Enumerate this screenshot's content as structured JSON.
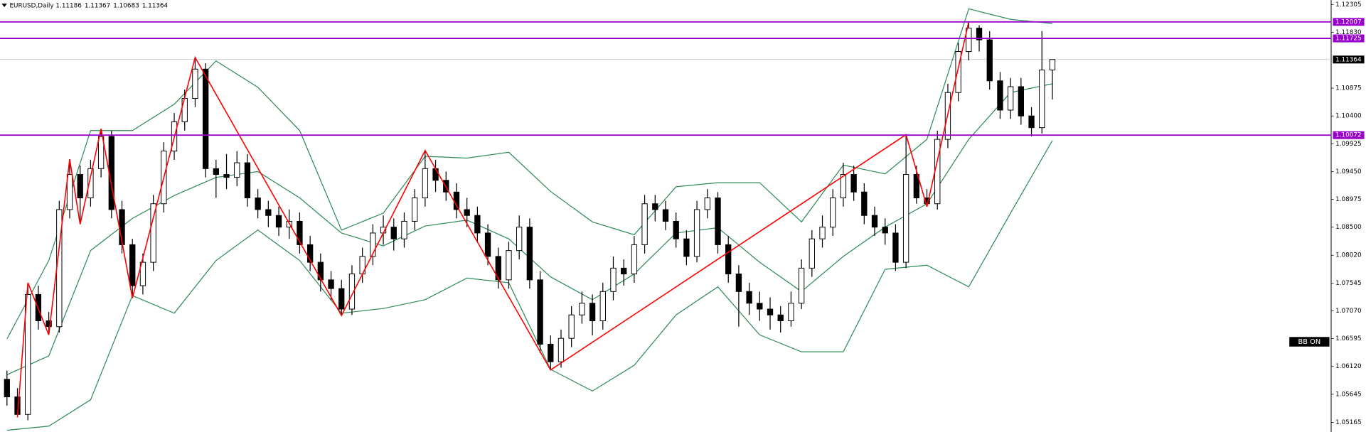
{
  "chart_data": {
    "type": "candlestick",
    "symbol": "EURUSD,Daily",
    "ylim": [
      1.05002,
      1.12379
    ],
    "yticks": [
      1.12305,
      {
        "value": 1.1183,
        "label": "1.11830"
      },
      1.10875,
      {
        "value": 1.104,
        "label": "1.10400"
      },
      1.09925,
      {
        "value": 1.0945,
        "label": "1.09450"
      },
      1.08975,
      {
        "value": 1.085,
        "label": "1.08500"
      },
      {
        "value": 1.0802,
        "label": "1.08020"
      },
      1.07545,
      {
        "value": 1.0707,
        "label": "1.07070"
      },
      1.06595,
      {
        "value": 1.0612,
        "label": "1.06120"
      },
      1.05645,
      1.05165
    ],
    "grid": false,
    "up_color": "#ffffff",
    "down_color": "#000000",
    "candles": [
      [
        1.059,
        1.0605,
        1.0545,
        1.056
      ],
      [
        1.056,
        1.0575,
        1.0525,
        1.053
      ],
      [
        1.053,
        1.0755,
        1.052,
        1.0735
      ],
      [
        1.0735,
        1.075,
        1.0675,
        1.069
      ],
      [
        1.069,
        1.0705,
        1.0666,
        1.068
      ],
      [
        1.068,
        1.0895,
        1.067,
        1.088
      ],
      [
        1.088,
        1.0966,
        1.0865,
        1.094
      ],
      [
        1.094,
        1.0955,
        1.0855,
        1.09
      ],
      [
        1.09,
        1.0965,
        1.0885,
        1.095
      ],
      [
        1.095,
        1.1018,
        1.0935,
        1.1005
      ],
      [
        1.1005,
        1.1015,
        1.0865,
        1.088
      ],
      [
        1.088,
        1.0895,
        1.0805,
        1.082
      ],
      [
        1.082,
        1.083,
        1.0729,
        1.075
      ],
      [
        1.075,
        1.0805,
        1.0735,
        1.079
      ],
      [
        1.079,
        1.0905,
        1.0775,
        1.089
      ],
      [
        1.089,
        1.0995,
        1.0875,
        1.098
      ],
      [
        1.098,
        1.1045,
        1.0965,
        1.103
      ],
      [
        1.103,
        1.1085,
        1.1015,
        1.107
      ],
      [
        1.107,
        1.114,
        1.1055,
        1.112
      ],
      [
        1.112,
        1.113,
        1.0935,
        1.095
      ],
      [
        1.095,
        1.0965,
        1.09,
        1.094
      ],
      [
        1.094,
        1.0975,
        1.0915,
        1.0935
      ],
      [
        1.0935,
        1.098,
        1.092,
        1.096
      ],
      [
        1.096,
        1.0975,
        1.0885,
        1.09
      ],
      [
        1.09,
        1.0915,
        1.0865,
        1.088
      ],
      [
        1.088,
        1.0895,
        1.085,
        1.087
      ],
      [
        1.087,
        1.0885,
        1.0835,
        1.085
      ],
      [
        1.085,
        1.088,
        1.083,
        1.086
      ],
      [
        1.086,
        1.0875,
        1.0805,
        1.082
      ],
      [
        1.082,
        1.0835,
        1.0775,
        1.079
      ],
      [
        1.079,
        1.0805,
        1.074,
        1.076
      ],
      [
        1.076,
        1.0775,
        1.0725,
        1.0745
      ],
      [
        1.0745,
        1.076,
        1.0699,
        1.071
      ],
      [
        1.071,
        1.0785,
        1.07,
        1.077
      ],
      [
        1.077,
        1.0815,
        1.0755,
        1.08
      ],
      [
        1.08,
        1.0855,
        1.0785,
        1.084
      ],
      [
        1.084,
        1.087,
        1.082,
        1.085
      ],
      [
        1.085,
        1.0865,
        1.081,
        1.083
      ],
      [
        1.083,
        1.0875,
        1.0815,
        1.086
      ],
      [
        1.086,
        1.0915,
        1.0845,
        1.09
      ],
      [
        1.09,
        1.0981,
        1.0885,
        1.095
      ],
      [
        1.095,
        1.0965,
        1.091,
        1.093
      ],
      [
        1.093,
        1.0945,
        1.0895,
        1.091
      ],
      [
        1.091,
        1.0925,
        1.0865,
        1.088
      ],
      [
        1.088,
        1.09,
        1.085,
        1.087
      ],
      [
        1.087,
        1.0885,
        1.0825,
        1.084
      ],
      [
        1.084,
        1.0855,
        1.0785,
        1.08
      ],
      [
        1.08,
        1.0815,
        1.0745,
        1.076
      ],
      [
        1.076,
        1.0825,
        1.0745,
        1.081
      ],
      [
        1.081,
        1.087,
        1.0795,
        1.085
      ],
      [
        1.085,
        1.0865,
        1.0745,
        1.076
      ],
      [
        1.076,
        1.0775,
        1.0635,
        1.065
      ],
      [
        1.065,
        1.0665,
        1.0606,
        1.062
      ],
      [
        1.062,
        1.0675,
        1.061,
        1.066
      ],
      [
        1.066,
        1.0715,
        1.0645,
        1.07
      ],
      [
        1.07,
        1.074,
        1.0685,
        1.072
      ],
      [
        1.072,
        1.0735,
        1.0665,
        1.069
      ],
      [
        1.069,
        1.0755,
        1.0675,
        1.074
      ],
      [
        1.074,
        1.08,
        1.0725,
        1.078
      ],
      [
        1.078,
        1.0795,
        1.075,
        1.077
      ],
      [
        1.077,
        1.0835,
        1.0755,
        1.082
      ],
      [
        1.082,
        1.0905,
        1.0805,
        1.089
      ],
      [
        1.089,
        1.0905,
        1.086,
        1.088
      ],
      [
        1.088,
        1.0895,
        1.0845,
        1.086
      ],
      [
        1.086,
        1.0875,
        1.0815,
        1.083
      ],
      [
        1.083,
        1.0845,
        1.0785,
        1.08
      ],
      [
        1.08,
        1.0895,
        1.079,
        1.088
      ],
      [
        1.088,
        1.0915,
        1.0865,
        1.09
      ],
      [
        1.09,
        1.091,
        1.0805,
        1.082
      ],
      [
        1.082,
        1.0835,
        1.0755,
        1.077
      ],
      [
        1.077,
        1.0785,
        1.068,
        1.074
      ],
      [
        1.074,
        1.0755,
        1.07,
        1.072
      ],
      [
        1.072,
        1.074,
        1.069,
        1.071
      ],
      [
        1.071,
        1.073,
        1.0675,
        1.07
      ],
      [
        1.07,
        1.0715,
        1.067,
        1.069
      ],
      [
        1.069,
        1.074,
        1.068,
        1.072
      ],
      [
        1.072,
        1.0795,
        1.071,
        1.078
      ],
      [
        1.078,
        1.0845,
        1.0765,
        1.083
      ],
      [
        1.083,
        1.087,
        1.0815,
        1.085
      ],
      [
        1.085,
        1.0915,
        1.0835,
        1.09
      ],
      [
        1.09,
        1.096,
        1.0885,
        1.094
      ],
      [
        1.094,
        1.0955,
        1.0895,
        1.091
      ],
      [
        1.091,
        1.0925,
        1.0855,
        1.087
      ],
      [
        1.087,
        1.0885,
        1.0835,
        1.085
      ],
      [
        1.085,
        1.0865,
        1.082,
        1.084
      ],
      [
        1.084,
        1.0855,
        1.0775,
        1.079
      ],
      [
        1.079,
        1.1008,
        1.078,
        1.094
      ],
      [
        1.094,
        1.0955,
        1.089,
        1.09
      ],
      [
        1.09,
        1.0915,
        1.0885,
        1.089
      ],
      [
        1.089,
        1.1015,
        1.088,
        1.1
      ],
      [
        1.1,
        1.1095,
        1.0985,
        1.108
      ],
      [
        1.108,
        1.1165,
        1.1065,
        1.115
      ],
      [
        1.115,
        1.1201,
        1.1135,
        1.119
      ],
      [
        1.119,
        1.1195,
        1.115,
        1.117
      ],
      [
        1.117,
        1.1185,
        1.1085,
        1.11
      ],
      [
        1.11,
        1.1115,
        1.1035,
        1.105
      ],
      [
        1.105,
        1.1105,
        1.1035,
        1.109
      ],
      [
        1.109,
        1.1105,
        1.1025,
        1.104
      ],
      [
        1.104,
        1.1055,
        1.1005,
        1.102
      ],
      [
        1.102,
        1.1185,
        1.101,
        1.11186
      ],
      [
        1.11186,
        1.11367,
        1.10683,
        1.11364
      ]
    ],
    "levels": [
      1.12007,
      1.11725,
      1.10072
    ],
    "level_color": "#9900cc",
    "bands": {
      "color": "#2e8b57",
      "x": [
        0,
        4,
        8,
        12,
        16,
        20,
        24,
        28,
        32,
        36,
        40,
        44,
        48,
        52,
        56,
        60,
        64,
        68,
        72,
        76,
        80,
        84,
        88,
        92,
        96,
        100
      ],
      "upper": [
        1.0659,
        1.0793,
        1.1015,
        1.1015,
        1.106,
        1.1134,
        1.1089,
        1.1015,
        1.0845,
        1.0874,
        1.0971,
        1.0968,
        1.0978,
        1.0911,
        1.0859,
        1.0837,
        1.0919,
        1.0926,
        1.0926,
        1.0859,
        1.0956,
        1.0941,
        1.1,
        1.1223,
        1.1205,
        1.1198
      ],
      "middle": [
        1.0598,
        1.063,
        1.081,
        1.0865,
        1.0904,
        1.0935,
        1.0945,
        1.09,
        1.084,
        1.0818,
        1.0852,
        1.0862,
        1.083,
        1.0765,
        1.0726,
        1.077,
        1.084,
        1.0849,
        1.079,
        1.074,
        1.08,
        1.085,
        1.089,
        1.1,
        1.108,
        1.1095
      ],
      "lower": [
        1.0503,
        1.051,
        1.0555,
        1.0733,
        1.0703,
        1.0793,
        1.0845,
        1.0793,
        1.0703,
        1.0711,
        1.0726,
        1.0763,
        1.0755,
        1.0607,
        1.057,
        1.0614,
        1.07,
        1.0748,
        1.0666,
        1.0637,
        1.0637,
        1.0778,
        1.0785,
        1.0748,
        1.0874,
        1.0998
      ]
    },
    "zigzag": {
      "color": "#ff0000",
      "x": [
        1,
        2,
        4,
        6,
        7,
        9,
        12,
        18,
        32,
        40,
        52,
        86,
        88,
        92
      ],
      "values": [
        1.0525,
        1.0755,
        1.0666,
        1.0966,
        1.0855,
        1.1018,
        1.0729,
        1.114,
        1.0699,
        1.0981,
        1.0606,
        1.1008,
        1.0885,
        1.1201
      ]
    },
    "indicator_label": "BB ON"
  }
}
